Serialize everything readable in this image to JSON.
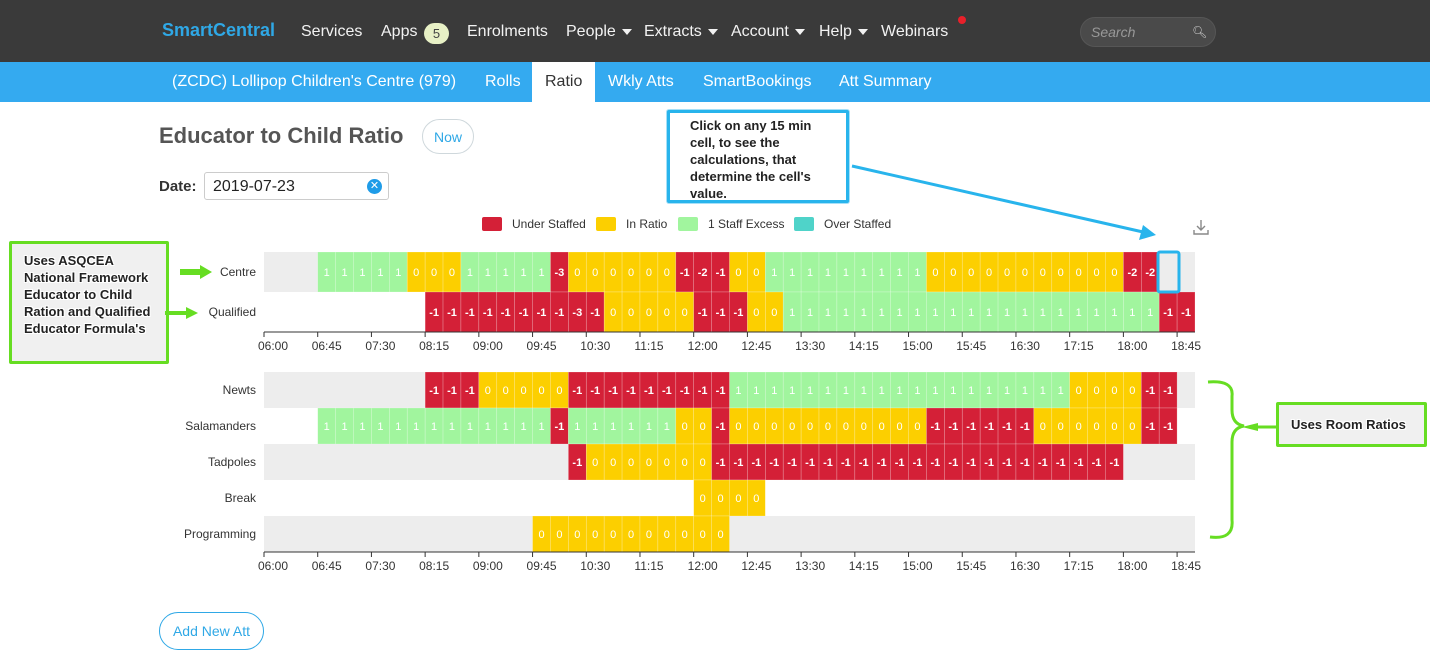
{
  "nav": {
    "brand": "SmartCentral",
    "items": [
      {
        "label": "Services"
      },
      {
        "label": "Apps"
      },
      {
        "label": "Enrolments"
      },
      {
        "label": "People"
      },
      {
        "label": "Extracts"
      },
      {
        "label": "Account"
      },
      {
        "label": "Help"
      },
      {
        "label": "Webinars"
      }
    ],
    "apps_badge": "5",
    "search_placeholder": "Search"
  },
  "subnav": {
    "centre": "(ZCDC) Lollipop Children's Centre (979)",
    "tabs": [
      "Rolls",
      "Ratio",
      "Wkly Atts",
      "SmartBookings",
      "Att Summary"
    ],
    "active_tab": "Ratio"
  },
  "page": {
    "title": "Educator to Child Ratio",
    "now_label": "Now",
    "date_label": "Date:",
    "date_value": "2019-07-23",
    "add_button": "Add New Att"
  },
  "legend": [
    {
      "label": "Under Staffed",
      "color": "#d42037"
    },
    {
      "label": "In Ratio",
      "color": "#fccf00"
    },
    {
      "label": "1 Staff Excess",
      "color": "#a1f59e"
    },
    {
      "label": "Over Staffed",
      "color": "#4fd3c9"
    }
  ],
  "annotations": {
    "left": "Uses ASQCEA National Framework Educator to Child Ration and Qualified Educator Formula's",
    "top": "Click on any 15 min cell, to see the calculations, that determine the cell's value.",
    "right": "Uses Room Ratios"
  },
  "chart_data": [
    {
      "type": "heatmap",
      "x_ticks": [
        "06:00",
        "06:45",
        "07:30",
        "08:15",
        "09:00",
        "09:45",
        "10:30",
        "11:15",
        "12:00",
        "12:45",
        "13:30",
        "14:15",
        "15:00",
        "15:45",
        "16:30",
        "17:15",
        "18:00",
        "18:45"
      ],
      "slot_minutes": 15,
      "rows": [
        {
          "name": "Centre",
          "start": "06:45",
          "values": [
            1,
            1,
            1,
            1,
            1,
            0,
            0,
            0,
            1,
            1,
            1,
            1,
            1,
            -3,
            0,
            0,
            0,
            0,
            0,
            0,
            -1,
            -2,
            -1,
            0,
            0,
            1,
            1,
            1,
            1,
            1,
            1,
            1,
            1,
            1,
            0,
            0,
            0,
            0,
            0,
            0,
            0,
            0,
            0,
            0,
            0,
            -2,
            -2
          ]
        },
        {
          "name": "Qualified",
          "start": "08:15",
          "values": [
            -1,
            -1,
            -1,
            -1,
            -1,
            -1,
            -1,
            -1,
            -3,
            -1,
            0,
            0,
            0,
            0,
            0,
            -1,
            -1,
            -1,
            0,
            0,
            1,
            1,
            1,
            1,
            1,
            1,
            1,
            1,
            1,
            1,
            1,
            1,
            1,
            1,
            1,
            1,
            1,
            1,
            1,
            1,
            1,
            -1,
            -1
          ]
        }
      ]
    },
    {
      "type": "heatmap",
      "x_ticks": [
        "06:00",
        "06:45",
        "07:30",
        "08:15",
        "09:00",
        "09:45",
        "10:30",
        "11:15",
        "12:00",
        "12:45",
        "13:30",
        "14:15",
        "15:00",
        "15:45",
        "16:30",
        "17:15",
        "18:00",
        "18:45"
      ],
      "slot_minutes": 15,
      "rows": [
        {
          "name": "Newts",
          "start": "08:15",
          "values": [
            -1,
            -1,
            -1,
            0,
            0,
            0,
            0,
            0,
            -1,
            -1,
            -1,
            -1,
            -1,
            -1,
            -1,
            -1,
            -1,
            1,
            1,
            1,
            1,
            1,
            1,
            1,
            1,
            1,
            1,
            1,
            1,
            1,
            1,
            1,
            1,
            1,
            1,
            1,
            0,
            0,
            0,
            0,
            -1,
            -1
          ]
        },
        {
          "name": "Salamanders",
          "start": "06:45",
          "values": [
            1,
            1,
            1,
            1,
            1,
            1,
            1,
            1,
            1,
            1,
            1,
            1,
            1,
            -1,
            1,
            1,
            1,
            1,
            1,
            1,
            0,
            0,
            -1,
            0,
            0,
            0,
            0,
            0,
            0,
            0,
            0,
            0,
            0,
            0,
            -1,
            -1,
            -1,
            -1,
            -1,
            -1,
            0,
            0,
            0,
            0,
            0,
            0,
            -1,
            -1
          ]
        },
        {
          "name": "Tadpoles",
          "start": "10:15",
          "values": [
            -1,
            0,
            0,
            0,
            0,
            0,
            0,
            0,
            -1,
            -1,
            -1,
            -1,
            -1,
            -1,
            -1,
            -1,
            -1,
            -1,
            -1,
            -1,
            -1,
            -1,
            -1,
            -1,
            -1,
            -1,
            -1,
            -1,
            -1,
            -1,
            -1
          ]
        },
        {
          "name": "Break",
          "start": "12:00",
          "values": [
            0,
            0,
            0,
            0
          ]
        },
        {
          "name": "Programming",
          "start": "09:45",
          "values": [
            0,
            0,
            0,
            0,
            0,
            0,
            0,
            0,
            0,
            0,
            0
          ]
        }
      ]
    }
  ]
}
